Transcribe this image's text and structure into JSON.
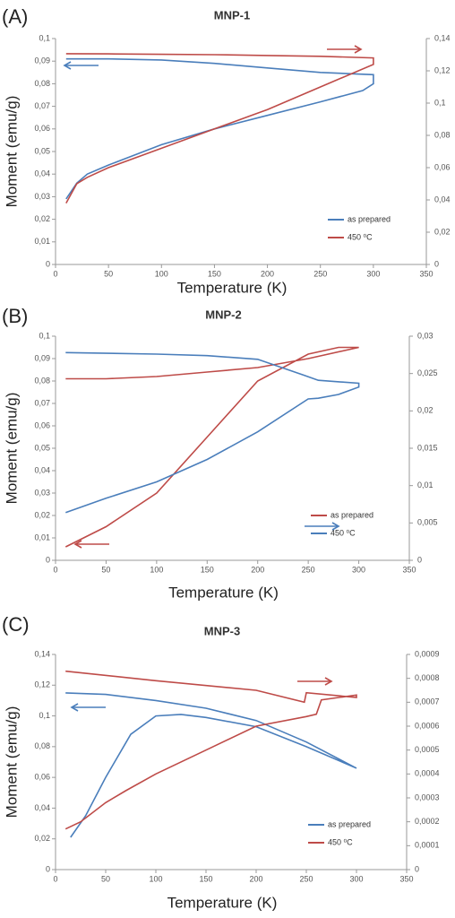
{
  "chart_data": [
    {
      "type": "line",
      "panel": "(A)",
      "title": "MNP-1",
      "x_label": "Temperature (K)",
      "y_label": "Moment (emu/g)",
      "legend": "lower right",
      "xlim": [
        0,
        350
      ],
      "xticks": [
        0,
        50,
        100,
        150,
        200,
        250,
        300,
        350
      ],
      "ylim": [
        0,
        0.1
      ],
      "yticks": [
        0,
        {
          "value": 0.01,
          "label": "0,01"
        },
        {
          "value": 0.02,
          "label": "0,02"
        },
        {
          "value": 0.03,
          "label": "0,03"
        },
        {
          "value": 0.04,
          "label": "0,04"
        },
        {
          "value": 0.05,
          "label": "0,05"
        },
        {
          "value": 0.06,
          "label": "0,06"
        },
        {
          "value": 0.07,
          "label": "0,07"
        },
        {
          "value": 0.08,
          "label": "0,08"
        },
        {
          "value": 0.09,
          "label": "0,09"
        },
        {
          "value": 0.1,
          "label": "0,1"
        }
      ],
      "y2lim": [
        0,
        0.14
      ],
      "y2ticks": [
        0,
        {
          "value": 0.02,
          "label": "0,02"
        },
        {
          "value": 0.04,
          "label": "0,04"
        },
        {
          "value": 0.06,
          "label": "0,06"
        },
        {
          "value": 0.08,
          "label": "0,08"
        },
        {
          "value": 0.1,
          "label": "0,1"
        },
        {
          "value": 0.12,
          "label": "0,12"
        },
        {
          "value": 0.14,
          "label": "0,14"
        }
      ],
      "series": [
        {
          "name": "as prepared",
          "color": "#4a7ebb",
          "axis": "y",
          "x": [
            10,
            20,
            30,
            50,
            100,
            150,
            200,
            250,
            290,
            300,
            300,
            250,
            200,
            150,
            100,
            50,
            10
          ],
          "values": [
            0.029,
            0.036,
            0.04,
            0.044,
            0.053,
            0.06,
            0.066,
            0.072,
            0.077,
            0.08,
            0.084,
            0.085,
            0.087,
            0.089,
            0.0905,
            0.091,
            0.091
          ]
        },
        {
          "name": "450 ⁰C",
          "color": "#be4b48",
          "axis": "y2",
          "x": [
            10,
            20,
            30,
            50,
            100,
            150,
            200,
            250,
            300,
            300,
            250,
            200,
            150,
            100,
            50,
            10
          ],
          "values": [
            0.038,
            0.05,
            0.054,
            0.06,
            0.072,
            0.084,
            0.096,
            0.11,
            0.124,
            0.128,
            0.129,
            0.1295,
            0.13,
            0.1302,
            0.1305,
            0.1306
          ]
        }
      ]
    },
    {
      "type": "line",
      "panel": "(B)",
      "title": "MNP-2",
      "x_label": "Temperature (K)",
      "y_label": "Moment (emu/g)",
      "legend": "lower right",
      "xlim": [
        0,
        350
      ],
      "xticks": [
        0,
        50,
        100,
        150,
        200,
        250,
        300,
        350
      ],
      "ylim": [
        0,
        0.1
      ],
      "yticks": [
        0,
        {
          "value": 0.01,
          "label": "0,01"
        },
        {
          "value": 0.02,
          "label": "0,02"
        },
        {
          "value": 0.03,
          "label": "0,03"
        },
        {
          "value": 0.04,
          "label": "0,04"
        },
        {
          "value": 0.05,
          "label": "0,05"
        },
        {
          "value": 0.06,
          "label": "0,06"
        },
        {
          "value": 0.07,
          "label": "0,07"
        },
        {
          "value": 0.08,
          "label": "0,08"
        },
        {
          "value": 0.09,
          "label": "0,09"
        },
        {
          "value": 0.1,
          "label": "0,1"
        }
      ],
      "y2lim": [
        0,
        0.03
      ],
      "y2ticks": [
        0,
        {
          "value": 0.005,
          "label": "0,005"
        },
        {
          "value": 0.01,
          "label": "0,01"
        },
        {
          "value": 0.015,
          "label": "0,015"
        },
        {
          "value": 0.02,
          "label": "0,02"
        },
        {
          "value": 0.025,
          "label": "0,025"
        },
        {
          "value": 0.03,
          "label": "0,03"
        }
      ],
      "series": [
        {
          "name": "as prepared",
          "color": "#be4b48",
          "axis": "y",
          "x": [
            10,
            50,
            100,
            150,
            200,
            250,
            280,
            300,
            300,
            250,
            200,
            150,
            100,
            50,
            10
          ],
          "values": [
            0.006,
            0.015,
            0.03,
            0.055,
            0.08,
            0.092,
            0.095,
            0.095,
            0.095,
            0.09,
            0.086,
            0.084,
            0.082,
            0.081,
            0.081
          ]
        },
        {
          "name": "450 ⁰C",
          "color": "#4a7ebb",
          "axis": "y2",
          "x": [
            10,
            50,
            100,
            150,
            200,
            250,
            260,
            280,
            300,
            300,
            260,
            245,
            200,
            150,
            100,
            10
          ],
          "values": [
            0.0064,
            0.0083,
            0.0105,
            0.0135,
            0.0172,
            0.0216,
            0.0217,
            0.0222,
            0.0232,
            0.0237,
            0.0241,
            0.0248,
            0.0269,
            0.0274,
            0.0276,
            0.0278
          ]
        }
      ]
    },
    {
      "type": "line",
      "panel": "(C)",
      "title": "MNP-3",
      "x_label": "Temperature (K)",
      "y_label": "Moment (emu/g)",
      "legend": "lower right",
      "xlim": [
        0,
        350
      ],
      "xticks": [
        0,
        50,
        100,
        150,
        200,
        250,
        300,
        350
      ],
      "ylim": [
        0,
        0.14
      ],
      "yticks": [
        0,
        {
          "value": 0.02,
          "label": "0,02"
        },
        {
          "value": 0.04,
          "label": "0,04"
        },
        {
          "value": 0.06,
          "label": "0,06"
        },
        {
          "value": 0.08,
          "label": "0,08"
        },
        {
          "value": 0.1,
          "label": "0,1"
        },
        {
          "value": 0.12,
          "label": "0,12"
        },
        {
          "value": 0.14,
          "label": "0,14"
        }
      ],
      "y2lim": [
        0,
        0.0009
      ],
      "y2ticks": [
        0,
        {
          "value": 0.0001,
          "label": "0,0001"
        },
        {
          "value": 0.0002,
          "label": "0,0002"
        },
        {
          "value": 0.0003,
          "label": "0,0003"
        },
        {
          "value": 0.0004,
          "label": "0,0004"
        },
        {
          "value": 0.0005,
          "label": "0,0005"
        },
        {
          "value": 0.0006,
          "label": "0,0006"
        },
        {
          "value": 0.0007,
          "label": "0,0007"
        },
        {
          "value": 0.0008,
          "label": "0,0008"
        },
        {
          "value": 0.0009,
          "label": "0,0009"
        }
      ],
      "series": [
        {
          "name": "as prepared",
          "color": "#4a7ebb",
          "axis": "y",
          "x": [
            15,
            30,
            50,
            75,
            100,
            125,
            150,
            200,
            250,
            300,
            300,
            250,
            200,
            150,
            100,
            50,
            10
          ],
          "values": [
            0.021,
            0.035,
            0.06,
            0.088,
            0.1,
            0.101,
            0.099,
            0.093,
            0.08,
            0.066,
            0.066,
            0.083,
            0.097,
            0.105,
            0.11,
            0.114,
            0.115
          ]
        },
        {
          "name": "450 ⁰C",
          "color": "#be4b48",
          "axis": "y2",
          "x": [
            10,
            25,
            50,
            70,
            100,
            150,
            200,
            250,
            260,
            265,
            300,
            300,
            250,
            248,
            200,
            100,
            10
          ],
          "values": [
            0.00017,
            0.0002,
            0.00028,
            0.00033,
            0.0004,
            0.0005,
            0.0006,
            0.00064,
            0.00065,
            0.00071,
            0.00073,
            0.00072,
            0.00074,
            0.0007,
            0.00075,
            0.00079,
            0.00083
          ]
        }
      ]
    }
  ]
}
